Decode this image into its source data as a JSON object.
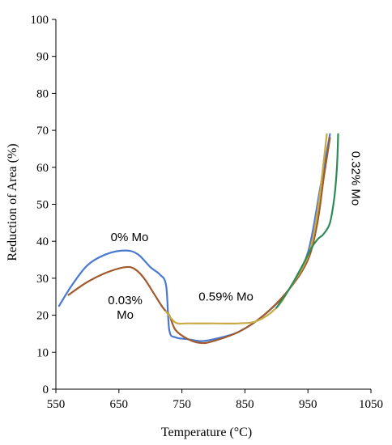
{
  "chart_data": {
    "type": "line",
    "xlabel": "Temperature (°C)",
    "ylabel": "Reduction of Area (%)",
    "xlim": [
      550,
      1050
    ],
    "ylim": [
      0,
      100
    ],
    "xticks": [
      550,
      650,
      750,
      850,
      950,
      1050
    ],
    "yticks": [
      0,
      10,
      20,
      30,
      40,
      50,
      60,
      70,
      80,
      90,
      100
    ],
    "grid": false,
    "series": [
      {
        "name": "0% Mo",
        "color": "#4a78d2",
        "x": [
          555,
          575,
          600,
          630,
          660,
          680,
          700,
          715,
          725,
          730,
          740,
          760,
          780,
          800,
          840,
          880,
          920,
          950,
          970,
          985
        ],
        "y": [
          22.5,
          28,
          33.5,
          36.5,
          37.5,
          36.5,
          33,
          31,
          28,
          16,
          14,
          13.5,
          13,
          13.5,
          15.5,
          20,
          27,
          37,
          55,
          69
        ]
      },
      {
        "name": "0.03% Mo",
        "color": "#a05a2c",
        "x": [
          570,
          600,
          630,
          660,
          675,
          690,
          705,
          720,
          730,
          740,
          760,
          780,
          800,
          840,
          880,
          920,
          950,
          965,
          975,
          985
        ],
        "y": [
          25.5,
          29,
          31.5,
          33,
          32.5,
          30,
          26,
          22,
          20,
          16,
          13.5,
          12.5,
          13,
          15.5,
          20,
          27,
          35,
          45,
          57,
          68
        ]
      },
      {
        "name": "0.59% Mo",
        "color": "#c8aa46",
        "x": [
          725,
          740,
          760,
          800,
          840,
          870,
          900,
          920,
          950,
          965,
          980
        ],
        "y": [
          21,
          18,
          17.8,
          17.8,
          17.8,
          18.5,
          22,
          27,
          36,
          48,
          69
        ]
      },
      {
        "name": "0.32% Mo",
        "color": "#2e8b57",
        "x": [
          900,
          920,
          940,
          955,
          965,
          975,
          985,
          992,
          996,
          998
        ],
        "y": [
          22,
          27,
          33,
          38,
          40.5,
          42,
          45,
          52,
          60,
          69
        ]
      }
    ],
    "annotations": [
      {
        "text": "0% Mo",
        "x": 667,
        "y": 40
      },
      {
        "text": "0.03%",
        "x": 660,
        "y": 23
      },
      {
        "text": "Mo",
        "x": 660,
        "y": 19
      },
      {
        "text": "0.59% Mo",
        "x": 820,
        "y": 24
      },
      {
        "text": "0.32% Mo",
        "x": 1020,
        "y": 57
      }
    ]
  }
}
